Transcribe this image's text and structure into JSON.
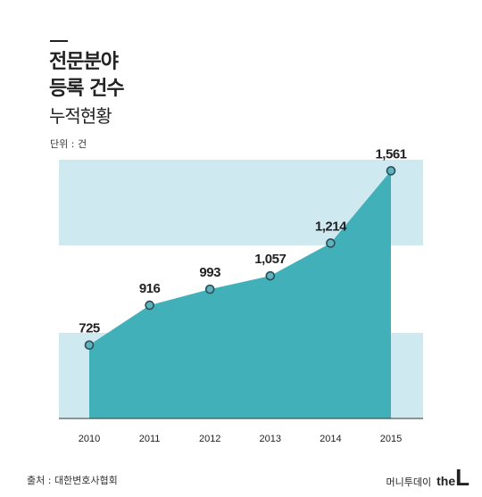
{
  "title": {
    "line1": "전문분야",
    "line2": "등록 건수",
    "line3": "누적현황"
  },
  "unit_label": "단위 : 건",
  "source": "출처 : 대한변호사협회",
  "brand": {
    "korean": "머니투데이",
    "the": "the",
    "L": "L"
  },
  "colors": {
    "band": "#cfe9f0",
    "area": "#41b0b8",
    "marker_fill": "#5eb3bd",
    "marker_stroke": "#2b4b57",
    "axis": "#333333"
  },
  "chart_data": {
    "type": "area",
    "categories": [
      "2010",
      "2011",
      "2012",
      "2013",
      "2014",
      "2015"
    ],
    "values": [
      725,
      916,
      993,
      1057,
      1214,
      1561
    ],
    "value_labels": [
      "725",
      "916",
      "993",
      "1,057",
      "1,214",
      "1,561"
    ],
    "title": "",
    "xlabel": "",
    "ylabel": "",
    "ylim": [
      373,
      1614
    ],
    "grid": false
  }
}
